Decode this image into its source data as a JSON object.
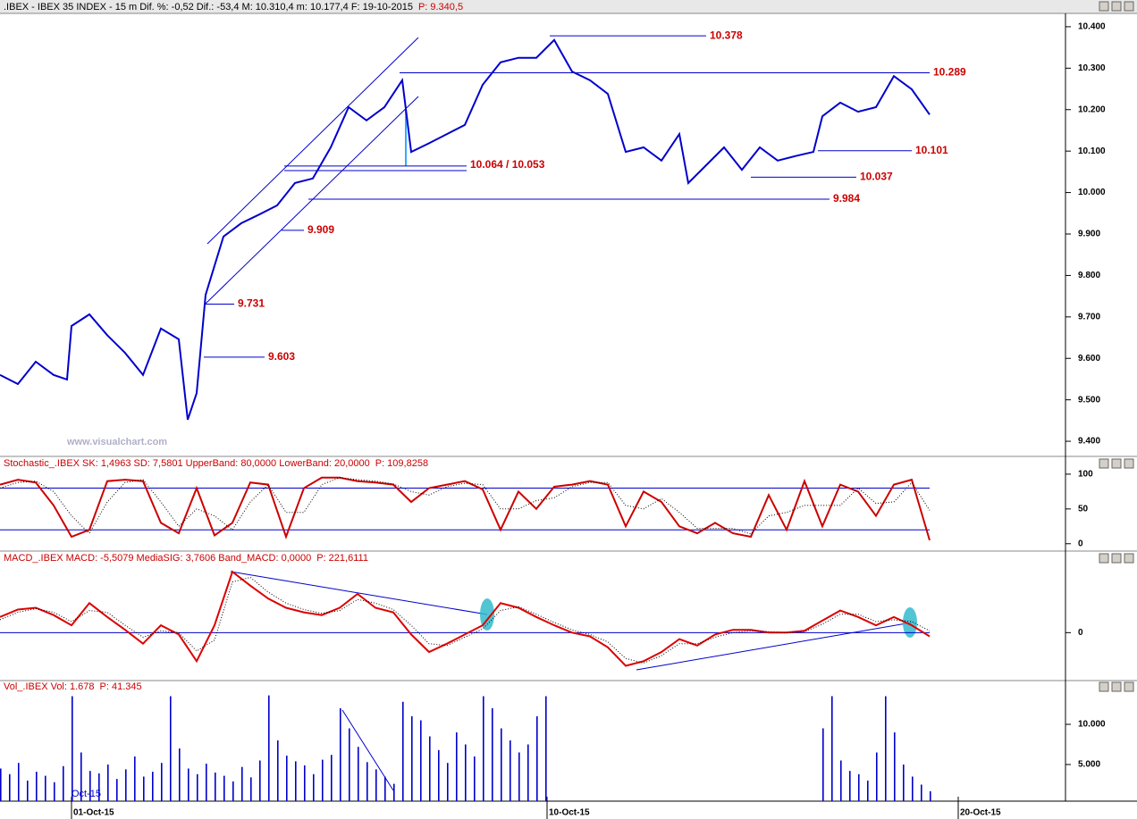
{
  "chart_data": [
    {
      "type": "line",
      "title": ".IBEX - IBEX 35 INDEX - 15 m  Dif. %: -0,52  Dif.: -53,4  M: 10.310,4  m: 10.177,4  F: 19-10-2015",
      "title_note": "P: 9.340,5",
      "watermark": "www.visualchart.com",
      "xlim": [
        0,
        119
      ],
      "ylim": [
        9370,
        10430
      ],
      "yticks": [
        {
          "value": 10400,
          "label": "10.400"
        },
        {
          "value": 10300,
          "label": "10.300"
        },
        {
          "value": 10200,
          "label": "10.200"
        },
        {
          "value": 10100,
          "label": "10.100"
        },
        {
          "value": 10000,
          "label": "10.000"
        },
        {
          "value": 9900,
          "label": "9.900"
        },
        {
          "value": 9800,
          "label": "9.800"
        },
        {
          "value": 9700,
          "label": "9.700"
        },
        {
          "value": 9600,
          "label": "9.600"
        },
        {
          "value": 9500,
          "label": "9.500"
        },
        {
          "value": 9400,
          "label": "9.400"
        }
      ],
      "x": [
        0,
        2,
        4,
        6,
        7.5,
        8,
        10,
        12,
        14,
        16,
        18,
        20,
        21,
        22,
        23,
        25,
        27,
        29,
        31,
        33,
        35,
        37,
        39,
        41,
        43,
        45,
        46,
        48,
        50,
        52,
        54,
        56,
        58,
        60,
        62,
        64,
        66,
        68,
        70,
        72,
        74,
        76,
        77,
        79,
        81,
        83,
        85,
        87,
        89,
        91,
        92,
        94,
        96,
        98,
        100,
        102,
        104
      ],
      "series": [
        {
          "color": "#0000cc",
          "values": [
            9560,
            9538,
            9592,
            9560,
            9549,
            9678,
            9706,
            9656,
            9613,
            9560,
            9672,
            9646,
            9452,
            9516,
            9753,
            9894,
            9926,
            9947,
            9969,
            10023,
            10034,
            10109,
            10206,
            10174,
            10206,
            10271,
            10098,
            10119,
            10141,
            10163,
            10260,
            10314,
            10325,
            10325,
            10368,
            10292,
            10271,
            10238,
            10098,
            10109,
            10077,
            10141,
            10023,
            10066,
            10109,
            10055,
            10109,
            10077,
            10088,
            10098,
            10184,
            10217,
            10195,
            10206,
            10281,
            10249,
            10188
          ]
        }
      ],
      "annotations": [
        {
          "label": "10.378",
          "value": 10378,
          "x": [
            61.5,
            79
          ]
        },
        {
          "label": "10.289",
          "value": 10289,
          "x": [
            44.7,
            104
          ]
        },
        {
          "label": "10.101",
          "value": 10101,
          "x": [
            91.5,
            102
          ]
        },
        {
          "label": "10.037",
          "value": 10037,
          "x": [
            84,
            95.8
          ]
        },
        {
          "label": "9.984",
          "value": 9984,
          "x": [
            34.5,
            92.8
          ]
        },
        {
          "label": "9.909",
          "value": 9909,
          "x": [
            31.5,
            34
          ]
        },
        {
          "label": "9.731",
          "value": 9731,
          "x": [
            23,
            26.2
          ]
        },
        {
          "label": "9.603",
          "value": 9603,
          "x": [
            22.8,
            29.6
          ]
        }
      ],
      "range_annotation": {
        "label": "10.064 / 10.053",
        "values": [
          10064,
          10053
        ],
        "x": [
          31.8,
          52.2
        ]
      }
    },
    {
      "type": "line",
      "title": "Stochastic_.IBEX SK: 1,4963  SD: 7,5801  UpperBand: 80,0000  LowerBand: 20,0000",
      "title_note": "P: 109,8258",
      "xlim": [
        0,
        119
      ],
      "ylim": [
        -8,
        105
      ],
      "yticks": [
        100,
        50,
        0
      ],
      "bands": [
        80,
        20
      ],
      "x": [
        0,
        2,
        4,
        6,
        8,
        10,
        12,
        14,
        16,
        18,
        20,
        22,
        24,
        26,
        28,
        30,
        32,
        34,
        36,
        38,
        40,
        42,
        44,
        46,
        48,
        50,
        52,
        54,
        56,
        58,
        60,
        62,
        64,
        66,
        68,
        70,
        72,
        74,
        76,
        78,
        80,
        82,
        84,
        86,
        88,
        90,
        92,
        94,
        96,
        98,
        100,
        102,
        104
      ],
      "series": [
        {
          "color": "#cc0000",
          "values": [
            85,
            92,
            88,
            55,
            10,
            20,
            90,
            92,
            90,
            30,
            15,
            80,
            12,
            30,
            88,
            85,
            10,
            80,
            95,
            95,
            90,
            88,
            85,
            60,
            80,
            85,
            90,
            78,
            20,
            75,
            50,
            82,
            85,
            90,
            85,
            25,
            75,
            60,
            25,
            15,
            30,
            15,
            10,
            70,
            20,
            90,
            25,
            85,
            75,
            40,
            85,
            92,
            5
          ]
        },
        {
          "color": "#000000",
          "dotted": true,
          "values": [
            80,
            88,
            90,
            75,
            40,
            15,
            60,
            88,
            92,
            60,
            25,
            50,
            40,
            20,
            60,
            85,
            45,
            45,
            85,
            95,
            92,
            90,
            86,
            75,
            70,
            82,
            87,
            85,
            50,
            50,
            62,
            66,
            82,
            88,
            88,
            55,
            50,
            65,
            45,
            22,
            22,
            22,
            14,
            40,
            45,
            55,
            55,
            55,
            80,
            58,
            60,
            88,
            48
          ]
        }
      ]
    },
    {
      "type": "line",
      "title": "MACD_.IBEX MACD: -5,5079  MediaSIG: 3,7606  Band_MACD: 0,0000",
      "title_note": "P: 221,6111",
      "xlim": [
        0,
        119
      ],
      "ylim": [
        -52,
        73
      ],
      "yticks": [
        0
      ],
      "bands": [
        0
      ],
      "x": [
        0,
        2,
        4,
        6,
        8,
        10,
        12,
        14,
        16,
        18,
        20,
        22,
        24,
        26,
        28,
        30,
        32,
        34,
        36,
        38,
        40,
        42,
        44,
        46,
        48,
        50,
        52,
        54,
        56,
        58,
        60,
        62,
        64,
        66,
        68,
        70,
        72,
        74,
        76,
        78,
        80,
        82,
        84,
        86,
        88,
        90,
        92,
        94,
        96,
        98,
        100,
        102,
        104
      ],
      "series": [
        {
          "color": "#dd0000",
          "values": [
            17,
            25,
            27,
            19,
            8,
            32,
            17,
            3,
            -12,
            8,
            -2,
            -31,
            8,
            66,
            51,
            37,
            27,
            22,
            19,
            27,
            42,
            27,
            22,
            -2,
            -21,
            -12,
            -2,
            8,
            32,
            27,
            17,
            8,
            0,
            -4,
            -16,
            -36,
            -31,
            -21,
            -7,
            -14,
            -2,
            3,
            3,
            0,
            0,
            2,
            13,
            24,
            17,
            8,
            17,
            8,
            -4
          ]
        },
        {
          "color": "#000000",
          "dotted": true,
          "values": [
            14,
            22,
            26,
            22,
            12,
            24,
            22,
            8,
            -5,
            2,
            0,
            -20,
            -8,
            55,
            60,
            44,
            32,
            25,
            21,
            24,
            36,
            32,
            25,
            8,
            -12,
            -14,
            -5,
            4,
            24,
            28,
            20,
            11,
            3,
            -2,
            -10,
            -28,
            -33,
            -25,
            -12,
            -12,
            -5,
            0,
            2,
            1,
            0,
            1,
            9,
            20,
            20,
            12,
            14,
            12,
            2
          ]
        }
      ]
    },
    {
      "type": "bar",
      "title": "Vol_.IBEX Vol: 1.678",
      "title_note": "P: 41.345",
      "period_label": "Oct-15",
      "xlim": [
        0,
        119
      ],
      "ylim": [
        444,
        13778
      ],
      "yticks": [
        {
          "value": 10000,
          "label": "10.000"
        },
        {
          "value": 5000,
          "label": "5.000"
        }
      ],
      "xticks": [
        {
          "value": 8,
          "label": "01-Oct-15"
        },
        {
          "value": 61.2,
          "label": "10-Oct-15"
        },
        {
          "value": 107.2,
          "label": "20-Oct-15"
        }
      ],
      "x": [
        0,
        1,
        2,
        3,
        4,
        5,
        6,
        7,
        8,
        9,
        10,
        11,
        12,
        13,
        14,
        15,
        16,
        17,
        18,
        19,
        20,
        21,
        22,
        23,
        24,
        25,
        26,
        27,
        28,
        29,
        30,
        31,
        32,
        33,
        34,
        35,
        36,
        37,
        38,
        39,
        40,
        41,
        42,
        43,
        44,
        45,
        46,
        47,
        48,
        49,
        50,
        51,
        52,
        53,
        54,
        55,
        56,
        57,
        58,
        59,
        60,
        61,
        92,
        93,
        94,
        95,
        96,
        97,
        98,
        99,
        100,
        101,
        102,
        103,
        104
      ],
      "color": "#0000cc",
      "values": [
        4500,
        3800,
        5200,
        3000,
        4100,
        3600,
        2800,
        4800,
        13500,
        6500,
        4200,
        3900,
        5000,
        3200,
        4400,
        6000,
        3500,
        4100,
        5200,
        13500,
        7000,
        4500,
        3800,
        5100,
        4000,
        3600,
        2900,
        4700,
        3400,
        5500,
        13600,
        8000,
        6100,
        5400,
        4900,
        3800,
        5600,
        6200,
        12000,
        9500,
        7200,
        5300,
        4400,
        3500,
        2600,
        12800,
        11000,
        10500,
        8500,
        6800,
        5200,
        9000,
        7500,
        6000,
        13500,
        12000,
        9500,
        8000,
        6500,
        7500,
        11000,
        13500,
        9500,
        13500,
        5500,
        4200,
        3800,
        3000,
        6500,
        13500,
        9000,
        5000,
        3500,
        2500,
        1678
      ]
    }
  ]
}
